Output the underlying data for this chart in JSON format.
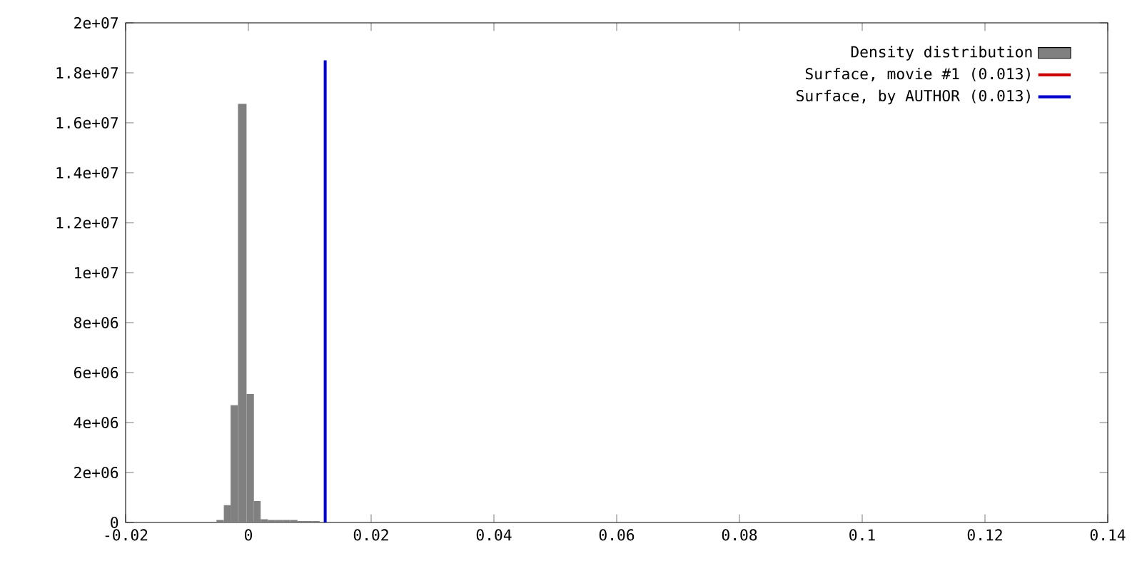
{
  "chart_data": {
    "type": "histogram",
    "series": [
      {
        "name": "Density distribution",
        "color": "#808080",
        "bins": [
          -0.0052,
          -0.004,
          -0.0029,
          -0.0017,
          -0.0003,
          0.0009,
          0.002,
          0.0032,
          0.0044,
          0.0056,
          0.0068,
          0.008,
          0.0092,
          0.0104,
          0.0116
        ],
        "values": [
          100000,
          690000,
          4690000,
          16760000,
          5140000,
          860000,
          130000,
          100000,
          100000,
          100000,
          100000,
          60000,
          60000,
          60000
        ]
      },
      {
        "name": "Surface, movie #1 (0.013)",
        "type": "line",
        "color": "#cc0000"
      },
      {
        "name": "Surface, by AUTHOR (0.013)",
        "type": "line",
        "color": "#0000cc",
        "x": [
          0.0125,
          0.0125
        ],
        "values": [
          0,
          18500000
        ]
      }
    ],
    "xlim": [
      -0.02,
      0.14
    ],
    "xticks": [
      -0.02,
      0,
      0.02,
      0.04,
      0.06,
      0.08,
      0.1,
      0.12,
      0.14
    ],
    "ylim": [
      0,
      20000000
    ],
    "yticks": [
      {
        "value": 0,
        "label": "0"
      },
      {
        "value": 2000000,
        "label": "2e+06"
      },
      {
        "value": 4000000,
        "label": "4e+06"
      },
      {
        "value": 6000000,
        "label": "6e+06"
      },
      {
        "value": 8000000,
        "label": "8e+06"
      },
      {
        "value": 10000000,
        "label": "1e+07"
      },
      {
        "value": 12000000,
        "label": "1.2e+07"
      },
      {
        "value": 14000000,
        "label": "1.4e+07"
      },
      {
        "value": 16000000,
        "label": "1.6e+07"
      },
      {
        "value": 18000000,
        "label": "1.8e+07"
      },
      {
        "value": 20000000,
        "label": "2e+07"
      }
    ],
    "grid": false,
    "legend": "top right"
  }
}
